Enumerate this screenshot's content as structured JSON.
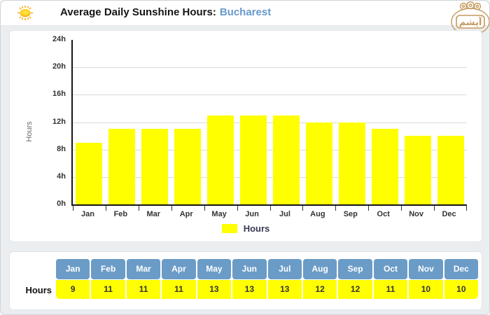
{
  "header": {
    "title": "Average Daily Sunshine Hours:",
    "city": "Bucharest",
    "logo_text": "آيشم"
  },
  "colors": {
    "bar_yellow": "#ffff00",
    "table_header_blue": "#6b9cc7",
    "city_blue": "#6699cc",
    "axis_black": "#161616",
    "gridline_gray": "#dadada",
    "logo_gold": "#c49a5e",
    "page_bg": "#ebeef1"
  },
  "chart_data": {
    "type": "bar",
    "title": "Average Daily Sunshine Hours: Bucharest",
    "categories": [
      "Jan",
      "Feb",
      "Mar",
      "Apr",
      "May",
      "Jun",
      "Jul",
      "Aug",
      "Sep",
      "Oct",
      "Nov",
      "Dec"
    ],
    "values": [
      9,
      11,
      11,
      11,
      13,
      13,
      13,
      12,
      12,
      11,
      10,
      10
    ],
    "xlabel": "",
    "ylabel": "Hours",
    "ylim": [
      0,
      24
    ],
    "ytick_step": 4,
    "yticks": [
      "24h",
      "20h",
      "16h",
      "12h",
      "8h",
      "4h",
      "0h"
    ],
    "grid": "horizontal",
    "bar_color": "#ffff00",
    "legend_label": "Hours",
    "legend_position": "bottom"
  },
  "table": {
    "headers": [
      "Jan",
      "Feb",
      "Mar",
      "Apr",
      "May",
      "Jun",
      "Jul",
      "Aug",
      "Sep",
      "Oct",
      "Nov",
      "Dec"
    ],
    "row_label": "Hours",
    "values": [
      9,
      11,
      11,
      11,
      13,
      13,
      13,
      12,
      12,
      11,
      10,
      10
    ]
  }
}
